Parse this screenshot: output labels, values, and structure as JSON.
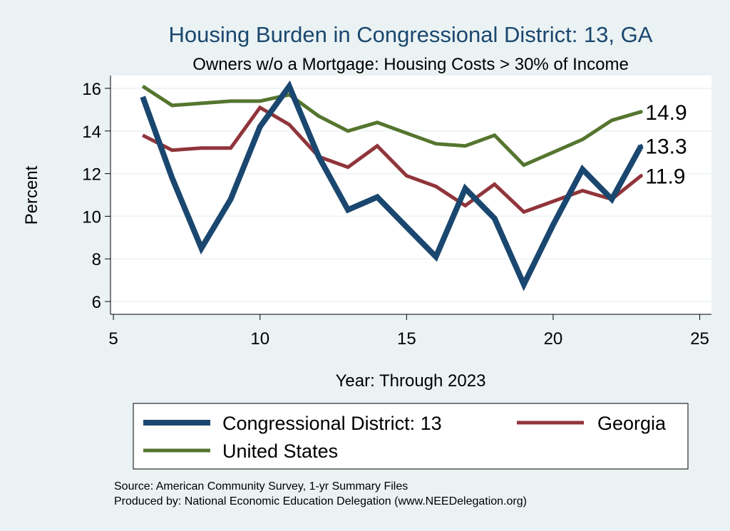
{
  "chart_data": {
    "type": "line",
    "title": "Housing Burden in Congressional District:  13, GA",
    "subtitle": "Owners w/o a Mortgage: Housing Costs > 30% of Income",
    "xlabel": "Year: Through 2023",
    "ylabel": "Percent",
    "xlim": [
      4.9,
      25.4
    ],
    "ylim": [
      5.4,
      16.6
    ],
    "xticks": [
      5,
      10,
      15,
      20,
      25
    ],
    "yticks": [
      6,
      8,
      10,
      12,
      14,
      16
    ],
    "x": [
      6,
      7,
      8,
      9,
      10,
      11,
      12,
      13,
      14,
      15,
      16,
      17,
      18,
      19,
      20,
      21,
      22,
      23
    ],
    "series": [
      {
        "name": "Congressional District:  13",
        "color": "#1a476f",
        "width": 8,
        "values": [
          15.6,
          11.8,
          8.5,
          10.8,
          14.2,
          16.1,
          12.8,
          10.3,
          10.9,
          9.5,
          8.1,
          11.3,
          9.9,
          6.8,
          9.6,
          12.2,
          10.8,
          13.3
        ],
        "end_label": "13.3"
      },
      {
        "name": "Georgia",
        "color": "#90353b",
        "width": 5,
        "values": [
          13.8,
          13.1,
          13.2,
          13.2,
          15.1,
          14.3,
          12.8,
          12.3,
          13.3,
          11.9,
          11.4,
          10.5,
          11.5,
          10.2,
          10.7,
          11.2,
          10.8,
          11.9
        ],
        "end_label": "11.9"
      },
      {
        "name": "United States",
        "color": "#55752f",
        "width": 5,
        "values": [
          16.1,
          15.2,
          15.3,
          15.4,
          15.4,
          15.7,
          14.7,
          14.0,
          14.4,
          13.9,
          13.4,
          13.3,
          13.8,
          12.4,
          13.0,
          13.6,
          14.5,
          14.9
        ],
        "end_label": "14.9"
      }
    ],
    "legend": {
      "position": "bottom",
      "items": [
        "Congressional District:  13",
        "Georgia",
        "United States"
      ]
    },
    "notes": [
      "Source: American Community Survey, 1-yr Summary Files",
      "Produced by: National Economic Education Delegation (www.NEEDelegation.org)"
    ]
  }
}
